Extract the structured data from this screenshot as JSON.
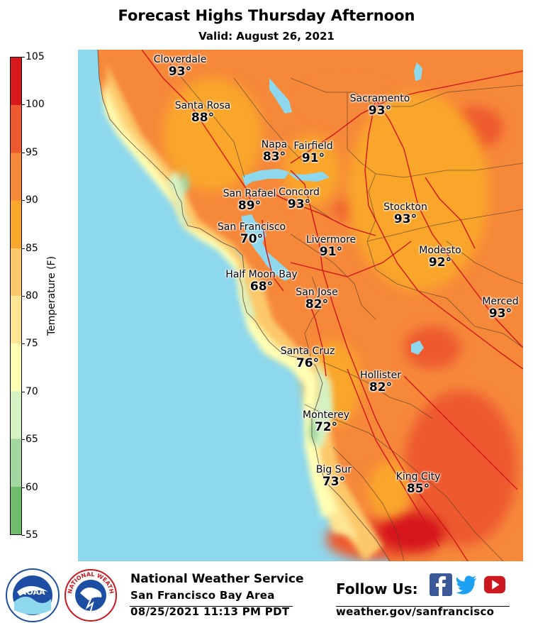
{
  "header": {
    "title": "Forecast Highs Thursday Afternoon",
    "valid": "Valid: August 26, 2021"
  },
  "colorbar": {
    "label": "Temperature (F)",
    "ticks": [
      "105",
      "100",
      "95",
      "90",
      "85",
      "80",
      "75",
      "70",
      "65",
      "60",
      "55"
    ],
    "bands": [
      {
        "from": 100,
        "to": 105,
        "color": "#d7191c"
      },
      {
        "from": 95,
        "to": 100,
        "color": "#ee5a2f"
      },
      {
        "from": 90,
        "to": 95,
        "color": "#f6883a"
      },
      {
        "from": 85,
        "to": 90,
        "color": "#f9a62c"
      },
      {
        "from": 80,
        "to": 85,
        "color": "#fcc96a"
      },
      {
        "from": 75,
        "to": 80,
        "color": "#fde593"
      },
      {
        "from": 70,
        "to": 75,
        "color": "#ffffb4"
      },
      {
        "from": 65,
        "to": 70,
        "color": "#d4f2c2"
      },
      {
        "from": 60,
        "to": 65,
        "color": "#a2d7a0"
      },
      {
        "from": 55,
        "to": 60,
        "color": "#6ebd6c"
      }
    ]
  },
  "map": {
    "ocean_color": "#8ed8ed",
    "cities": [
      {
        "name": "Cloverdale",
        "temp": "93°"
      },
      {
        "name": "Santa Rosa",
        "temp": "88°"
      },
      {
        "name": "Napa",
        "temp": "83°"
      },
      {
        "name": "Fairfield",
        "temp": "91°"
      },
      {
        "name": "Sacramento",
        "temp": "93°"
      },
      {
        "name": "San Rafael",
        "temp": "89°"
      },
      {
        "name": "Concord",
        "temp": "93°"
      },
      {
        "name": "Stockton",
        "temp": "93°"
      },
      {
        "name": "San Francisco",
        "temp": "70°"
      },
      {
        "name": "Livermore",
        "temp": "91°"
      },
      {
        "name": "Modesto",
        "temp": "92°"
      },
      {
        "name": "Half Moon Bay",
        "temp": "68°"
      },
      {
        "name": "San Jose",
        "temp": "82°"
      },
      {
        "name": "Merced",
        "temp": "93°"
      },
      {
        "name": "Santa Cruz",
        "temp": "76°"
      },
      {
        "name": "Hollister",
        "temp": "82°"
      },
      {
        "name": "Monterey",
        "temp": "72°"
      },
      {
        "name": "Big Sur",
        "temp": "73°"
      },
      {
        "name": "King City",
        "temp": "85°"
      }
    ]
  },
  "footer": {
    "org": "National Weather Service",
    "office": "San Francisco Bay Area",
    "issued": "08/25/2021 11:13 PM PDT",
    "follow": "Follow Us:",
    "website": "weather.gov/sanfrancisco",
    "noaa_logo_text": "NOAA",
    "nws_logo_text": "NATIONAL WEATHER SERVICE",
    "social_icons": [
      "facebook-icon",
      "twitter-icon",
      "youtube-icon"
    ]
  }
}
